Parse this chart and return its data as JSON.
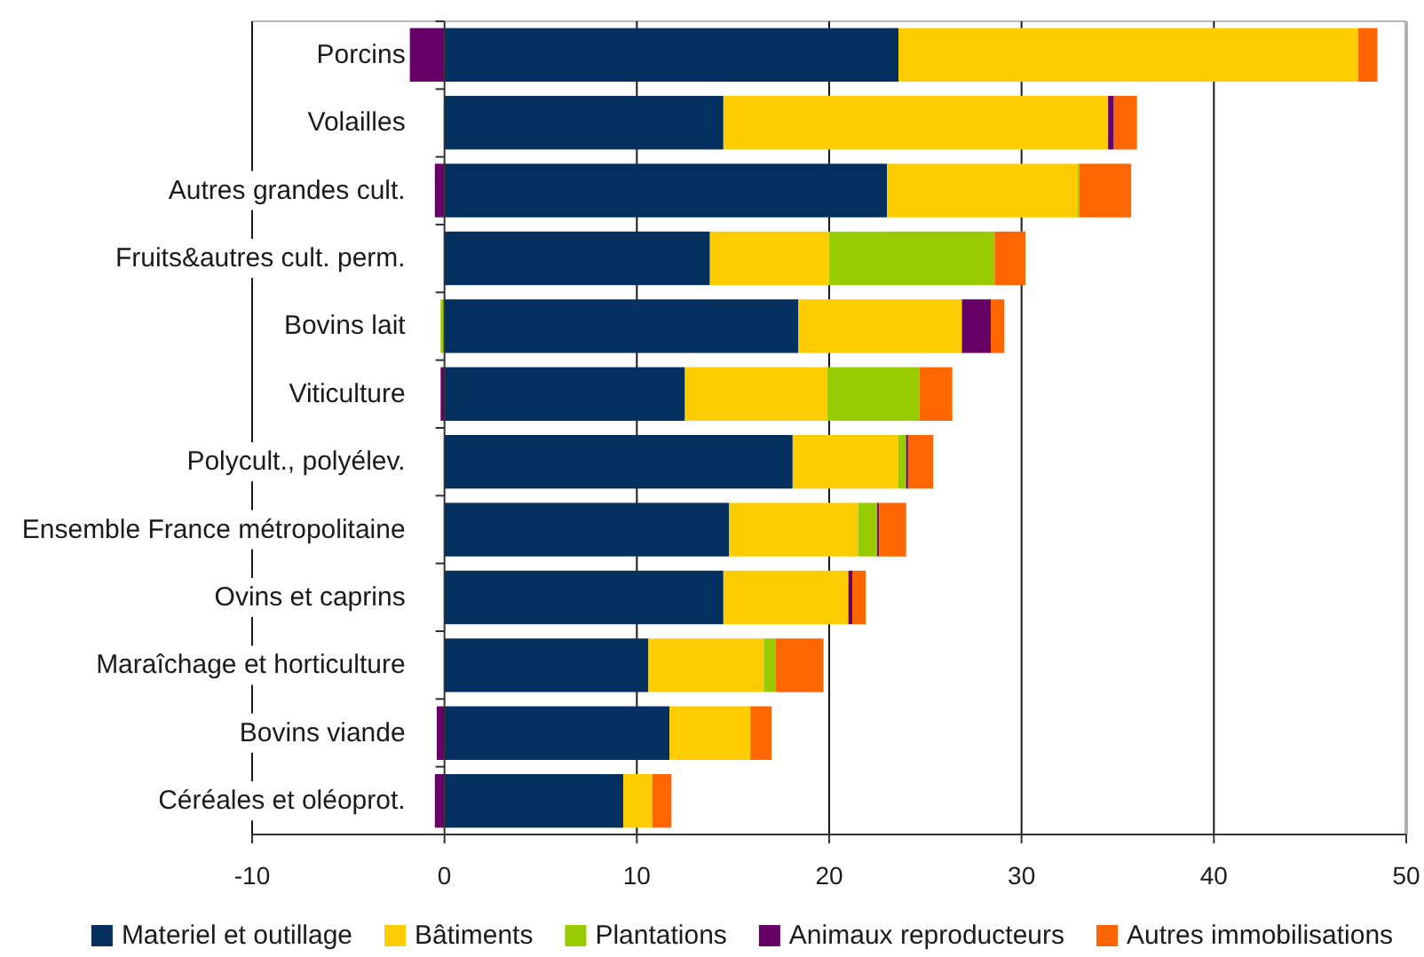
{
  "chart_data": {
    "type": "bar",
    "orientation": "horizontal",
    "stacked": true,
    "categories": [
      "Porcins",
      "Volailles",
      "Autres grandes cult.",
      "Fruits&autres cult. perm.",
      "Bovins lait",
      "Viticulture",
      "Polycult., polyélev.",
      "Ensemble France métropolitaine",
      "Ovins et caprins",
      "Maraîchage et horticulture",
      "Bovins viande",
      "Céréales et oléoprot."
    ],
    "series": [
      {
        "name": "Materiel et outillage",
        "color": "#03305f",
        "values": [
          23.6,
          14.5,
          23.0,
          13.8,
          18.4,
          12.5,
          18.1,
          14.8,
          14.5,
          10.6,
          11.7,
          9.3
        ]
      },
      {
        "name": "Bâtiments",
        "color": "#ffcc00",
        "values": [
          23.9,
          20.0,
          9.9,
          6.2,
          8.5,
          7.4,
          5.5,
          6.7,
          6.5,
          6.0,
          4.2,
          1.5
        ]
      },
      {
        "name": "Plantations",
        "color": "#99cc00",
        "values": [
          null,
          null,
          0.1,
          8.6,
          -0.2,
          4.8,
          0.4,
          1.0,
          null,
          0.6,
          null,
          null
        ]
      },
      {
        "name": "Animaux reproducteurs",
        "color": "#660066",
        "values": [
          -1.8,
          0.3,
          -0.5,
          null,
          1.5,
          -0.2,
          0.1,
          0.1,
          0.2,
          null,
          -0.4,
          -0.5
        ]
      },
      {
        "name": "Autres immobilisations",
        "color": "#ff6600",
        "values": [
          1.0,
          1.2,
          2.7,
          1.6,
          0.7,
          1.7,
          1.3,
          1.4,
          0.7,
          2.5,
          1.1,
          1.0
        ]
      }
    ],
    "xlim": [
      -10,
      50
    ],
    "xticks": [
      -10,
      0,
      10,
      20,
      30,
      40,
      50
    ],
    "grid": "x",
    "legend": "bottom"
  }
}
